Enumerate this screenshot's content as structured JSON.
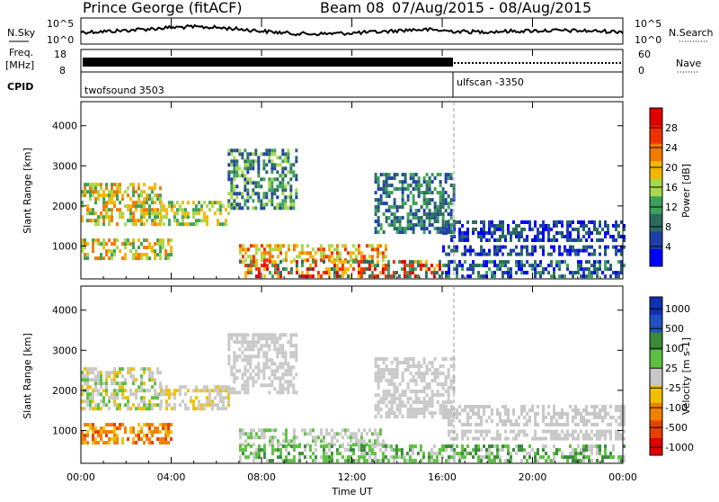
{
  "header": {
    "title": "Prince George (fitACF)",
    "beam": "Beam 08",
    "dates": "07/Aug/2015 - 08/Aug/2015"
  },
  "strip_labels": {
    "nsky": "N.Sky",
    "nsky_ticks": [
      "10^5",
      "10^0"
    ],
    "nsearch": "N.Search",
    "freq_line1": "Freq.",
    "freq_line2": "[MHz]",
    "freq_ticks": [
      "18",
      "8"
    ],
    "nave": "Nave",
    "nave_ticks": [
      "60",
      "0"
    ],
    "cpid": "CPID",
    "cpid_mode1": "twofsound 3503",
    "cpid_mode2": "ulfscan -3350"
  },
  "chart_data": [
    {
      "type": "heatmap",
      "name": "power",
      "ylabel": "Slant Range [km]",
      "xlabel": "",
      "ylim": [
        180,
        4600
      ],
      "yticks": [
        "1000",
        "2000",
        "3000",
        "4000"
      ],
      "colorbar_label": "Power [dB]",
      "colorbar_ticks": [
        "4",
        "8",
        "12",
        "16",
        "20",
        "24",
        "28"
      ],
      "colors": [
        "#0000ff",
        "#1f3fa8",
        "#2a6b5e",
        "#3ea05a",
        "#a8d84a",
        "#f4b700",
        "#f27a00",
        "#f03000",
        "#e00000"
      ]
    },
    {
      "type": "heatmap",
      "name": "velocity",
      "ylabel": "Slant Range [km]",
      "xlabel": "Time UT",
      "ylim": [
        180,
        4600
      ],
      "yticks": [
        "1000",
        "2000",
        "3000",
        "4000"
      ],
      "xticks": [
        "00:00",
        "04:00",
        "08:00",
        "12:00",
        "16:00",
        "20:00",
        "00:00"
      ],
      "xrange_hours": [
        0,
        24
      ],
      "colorbar_label": "Velocity [m s-1]",
      "colorbar_ticks": [
        "1000",
        "500",
        "100",
        "25",
        "-25",
        "-100",
        "-500",
        "-1000"
      ],
      "colors": [
        "#1030b0",
        "#2050c0",
        "#3a8a3a",
        "#5cc040",
        "#c8c8c8",
        "#f0c000",
        "#f08000",
        "#e84000",
        "#e00000"
      ]
    }
  ]
}
